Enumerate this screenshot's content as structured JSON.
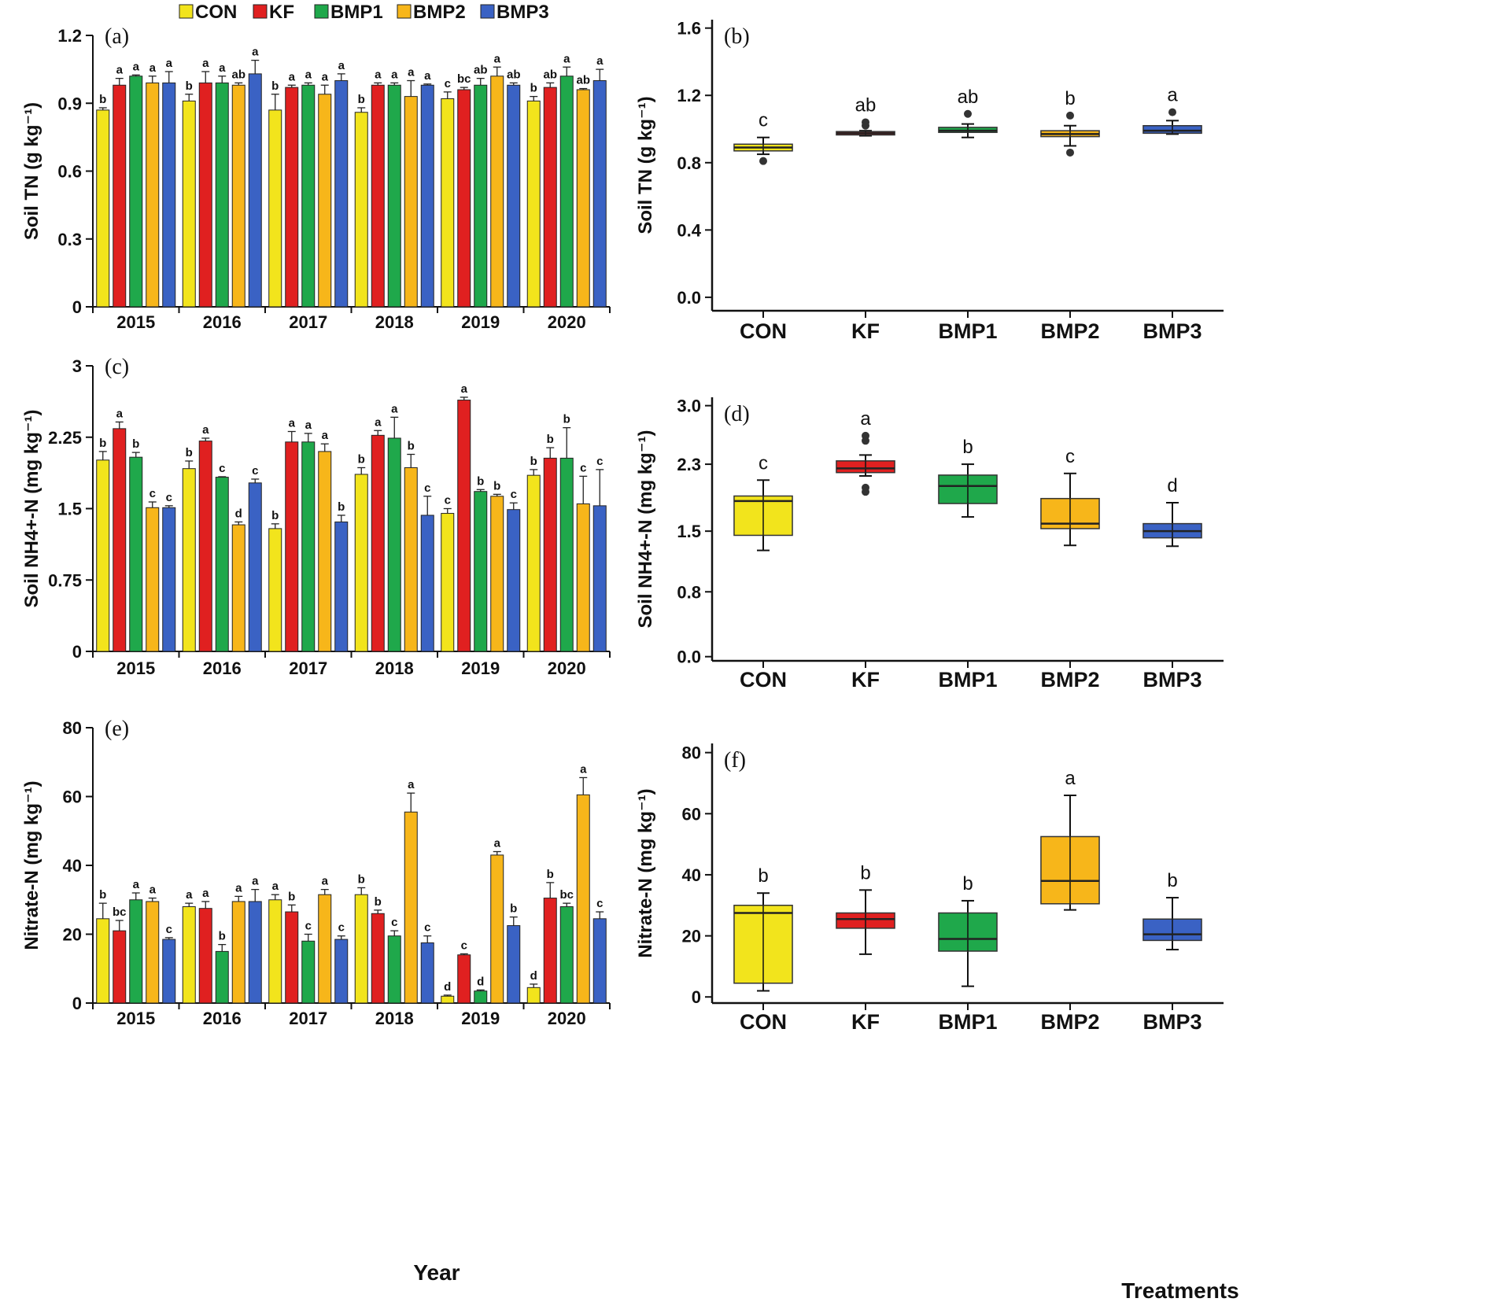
{
  "legend": [
    {
      "name": "CON",
      "color": "#f2e41c"
    },
    {
      "name": "KF",
      "color": "#e02020"
    },
    {
      "name": "BMP1",
      "color": "#1fa84b"
    },
    {
      "name": "BMP2",
      "color": "#f7b61a"
    },
    {
      "name": "BMP3",
      "color": "#3a62c4"
    }
  ],
  "labels": {
    "year": "Year",
    "treatments": "Treatments"
  },
  "chart_data": [
    {
      "id": "a",
      "panel_label": "(a)",
      "type": "bar",
      "ylabel": "Soil TN (g kg⁻¹)",
      "ylim": [
        0,
        1.2
      ],
      "yticks": [
        "0",
        "0.3",
        "0.6",
        "0.9",
        "1.2"
      ],
      "ytick_values": [
        0,
        0.3,
        0.6,
        0.9,
        1.2
      ],
      "categories": [
        "2015",
        "2016",
        "2017",
        "2018",
        "2019",
        "2020"
      ],
      "series": [
        {
          "name": "CON",
          "values": [
            0.87,
            0.91,
            0.87,
            0.86,
            0.92,
            0.91
          ],
          "errors": [
            0.01,
            0.03,
            0.07,
            0.02,
            0.03,
            0.02
          ],
          "letters": [
            "b",
            "b",
            "b",
            "b",
            "c",
            "b"
          ]
        },
        {
          "name": "KF",
          "values": [
            0.98,
            0.99,
            0.97,
            0.98,
            0.96,
            0.97
          ],
          "errors": [
            0.03,
            0.05,
            0.01,
            0.01,
            0.01,
            0.02
          ],
          "letters": [
            "a",
            "a",
            "a",
            "a",
            "bc",
            "ab"
          ]
        },
        {
          "name": "BMP1",
          "values": [
            1.02,
            0.99,
            0.98,
            0.98,
            0.98,
            1.02
          ],
          "errors": [
            0.005,
            0.03,
            0.01,
            0.01,
            0.03,
            0.04
          ],
          "letters": [
            "a",
            "a",
            "a",
            "a",
            "ab",
            "a"
          ]
        },
        {
          "name": "BMP2",
          "values": [
            0.99,
            0.98,
            0.94,
            0.93,
            1.02,
            0.96
          ],
          "errors": [
            0.03,
            0.01,
            0.04,
            0.07,
            0.04,
            0.005
          ],
          "letters": [
            "a",
            "ab",
            "a",
            "a",
            "a",
            "ab"
          ]
        },
        {
          "name": "BMP3",
          "values": [
            0.99,
            1.03,
            1.0,
            0.98,
            0.98,
            1.0
          ],
          "errors": [
            0.05,
            0.06,
            0.03,
            0.005,
            0.01,
            0.05
          ],
          "letters": [
            "a",
            "a",
            "a",
            "a",
            "ab",
            "a"
          ]
        }
      ]
    },
    {
      "id": "b",
      "panel_label": "(b)",
      "type": "box",
      "ylabel": "Soil TN (g kg⁻¹)",
      "ylim": [
        -0.08,
        1.65
      ],
      "yticks": [
        "0.0",
        "0.4",
        "0.8",
        "1.2",
        "1.6"
      ],
      "ytick_values": [
        0,
        0.4,
        0.8,
        1.2,
        1.6
      ],
      "categories": [
        "CON",
        "KF",
        "BMP1",
        "BMP2",
        "BMP3"
      ],
      "boxes": [
        {
          "min": 0.85,
          "q1": 0.87,
          "median": 0.89,
          "q3": 0.91,
          "max": 0.95,
          "outliers": [
            0.81
          ],
          "letter": "c"
        },
        {
          "min": 0.96,
          "q1": 0.965,
          "median": 0.975,
          "q3": 0.985,
          "max": 0.99,
          "outliers": [
            1.02,
            1.04
          ],
          "letter": "ab"
        },
        {
          "min": 0.95,
          "q1": 0.98,
          "median": 0.99,
          "q3": 1.01,
          "max": 1.03,
          "outliers": [
            1.09
          ],
          "letter": "ab"
        },
        {
          "min": 0.9,
          "q1": 0.955,
          "median": 0.97,
          "q3": 0.99,
          "max": 1.02,
          "outliers": [
            1.08,
            0.86
          ],
          "letter": "b"
        },
        {
          "min": 0.97,
          "q1": 0.975,
          "median": 0.99,
          "q3": 1.02,
          "max": 1.05,
          "outliers": [
            1.1
          ],
          "letter": "a"
        }
      ]
    },
    {
      "id": "c",
      "panel_label": "(c)",
      "type": "bar",
      "ylabel": "Soil NH4+-N (mg kg⁻¹)",
      "ylim": [
        0,
        3
      ],
      "yticks": [
        "0",
        "0.75",
        "1.5",
        "2.25",
        "3"
      ],
      "ytick_values": [
        0,
        0.75,
        1.5,
        2.25,
        3
      ],
      "categories": [
        "2015",
        "2016",
        "2017",
        "2018",
        "2019",
        "2020"
      ],
      "series": [
        {
          "name": "CON",
          "values": [
            2.01,
            1.92,
            1.29,
            1.86,
            1.45,
            1.85
          ],
          "errors": [
            0.09,
            0.08,
            0.05,
            0.07,
            0.05,
            0.06
          ],
          "letters": [
            "b",
            "b",
            "b",
            "b",
            "c",
            "b"
          ]
        },
        {
          "name": "KF",
          "values": [
            2.34,
            2.21,
            2.2,
            2.27,
            2.64,
            2.03
          ],
          "errors": [
            0.07,
            0.03,
            0.11,
            0.05,
            0.03,
            0.11
          ],
          "letters": [
            "a",
            "a",
            "a",
            "a",
            "a",
            "b"
          ]
        },
        {
          "name": "BMP1",
          "values": [
            2.04,
            1.83,
            2.2,
            2.24,
            1.68,
            2.03
          ],
          "errors": [
            0.05,
            0.005,
            0.09,
            0.22,
            0.02,
            0.32
          ],
          "letters": [
            "b",
            "c",
            "a",
            "a",
            "b",
            "b"
          ]
        },
        {
          "name": "BMP2",
          "values": [
            1.51,
            1.33,
            2.1,
            1.93,
            1.63,
            1.55
          ],
          "errors": [
            0.06,
            0.03,
            0.08,
            0.14,
            0.02,
            0.29
          ],
          "letters": [
            "c",
            "d",
            "a",
            "b",
            "b",
            "c"
          ]
        },
        {
          "name": "BMP3",
          "values": [
            1.51,
            1.77,
            1.36,
            1.43,
            1.49,
            1.53
          ],
          "errors": [
            0.02,
            0.04,
            0.07,
            0.2,
            0.07,
            0.38
          ],
          "letters": [
            "c",
            "c",
            "b",
            "c",
            "c",
            "c"
          ]
        }
      ]
    },
    {
      "id": "d",
      "panel_label": "(d)",
      "type": "box",
      "ylabel": "Soil NH4+-N (mg kg⁻¹)",
      "ylim": [
        -0.05,
        3.1
      ],
      "yticks": [
        "0.0",
        "0.8",
        "1.5",
        "2.3",
        "3.0"
      ],
      "ytick_values": [
        0,
        0.775,
        1.5,
        2.3,
        3.0
      ],
      "categories": [
        "CON",
        "KF",
        "BMP1",
        "BMP2",
        "BMP3"
      ],
      "boxes": [
        {
          "min": 1.27,
          "q1": 1.45,
          "median": 1.86,
          "q3": 1.92,
          "max": 2.11,
          "outliers": [],
          "letter": "c"
        },
        {
          "min": 2.16,
          "q1": 2.2,
          "median": 2.25,
          "q3": 2.34,
          "max": 2.41,
          "outliers": [
            2.64,
            2.58,
            1.97,
            2.02
          ],
          "letter": "a"
        },
        {
          "min": 1.67,
          "q1": 1.83,
          "median": 2.04,
          "q3": 2.17,
          "max": 2.3,
          "outliers": [],
          "letter": "b"
        },
        {
          "min": 1.33,
          "q1": 1.53,
          "median": 1.59,
          "q3": 1.89,
          "max": 2.19,
          "outliers": [],
          "letter": "c"
        },
        {
          "min": 1.32,
          "q1": 1.42,
          "median": 1.5,
          "q3": 1.59,
          "max": 1.84,
          "outliers": [],
          "letter": "d"
        }
      ]
    },
    {
      "id": "e",
      "panel_label": "(e)",
      "type": "bar",
      "ylabel": "Nitrate-N  (mg kg⁻¹)",
      "ylim": [
        0,
        80
      ],
      "yticks": [
        "0",
        "20",
        "40",
        "60",
        "80"
      ],
      "ytick_values": [
        0,
        20,
        40,
        60,
        80
      ],
      "categories": [
        "2015",
        "2016",
        "2017",
        "2018",
        "2019",
        "2020"
      ],
      "series": [
        {
          "name": "CON",
          "values": [
            24.5,
            28.0,
            30.0,
            31.5,
            2.0,
            4.5
          ],
          "errors": [
            4.5,
            1.0,
            1.5,
            2.0,
            0.3,
            1.0
          ],
          "letters": [
            "b",
            "a",
            "a",
            "b",
            "d",
            "d"
          ]
        },
        {
          "name": "KF",
          "values": [
            21.0,
            27.5,
            26.5,
            26.0,
            14.0,
            30.5
          ],
          "errors": [
            3.0,
            2.0,
            2.0,
            1.0,
            0.3,
            4.5
          ],
          "letters": [
            "bc",
            "a",
            "b",
            "b",
            "c",
            "b"
          ]
        },
        {
          "name": "BMP1",
          "values": [
            30.0,
            15.0,
            18.0,
            19.5,
            3.5,
            28.0
          ],
          "errors": [
            2.0,
            2.0,
            2.0,
            1.5,
            0.3,
            1.0
          ],
          "letters": [
            "a",
            "b",
            "c",
            "c",
            "d",
            "bc"
          ]
        },
        {
          "name": "BMP2",
          "values": [
            29.5,
            29.5,
            31.5,
            55.5,
            43.0,
            60.5
          ],
          "errors": [
            1.0,
            1.5,
            1.5,
            5.5,
            1.0,
            5.0
          ],
          "letters": [
            "a",
            "a",
            "a",
            "a",
            "a",
            "a"
          ]
        },
        {
          "name": "BMP3",
          "values": [
            18.5,
            29.5,
            18.5,
            17.5,
            22.5,
            24.5
          ],
          "errors": [
            0.5,
            3.5,
            1.0,
            2.0,
            2.5,
            2.0
          ],
          "letters": [
            "c",
            "a",
            "c",
            "c",
            "b",
            "c"
          ]
        }
      ]
    },
    {
      "id": "f",
      "panel_label": "(f)",
      "type": "box",
      "ylabel": "Nitrate-N  (mg kg⁻¹)",
      "ylim": [
        -2,
        83
      ],
      "yticks": [
        "0",
        "20",
        "40",
        "60",
        "80"
      ],
      "ytick_values": [
        0,
        20,
        40,
        60,
        80
      ],
      "categories": [
        "CON",
        "KF",
        "BMP1",
        "BMP2",
        "BMP3"
      ],
      "boxes": [
        {
          "min": 2.0,
          "q1": 4.5,
          "median": 27.5,
          "q3": 30.0,
          "max": 34.0,
          "outliers": [],
          "letter": "b"
        },
        {
          "min": 14.0,
          "q1": 22.5,
          "median": 25.5,
          "q3": 27.5,
          "max": 35.0,
          "outliers": [],
          "letter": "b"
        },
        {
          "min": 3.5,
          "q1": 15.0,
          "median": 19.0,
          "q3": 27.5,
          "max": 31.5,
          "outliers": [],
          "letter": "b"
        },
        {
          "min": 28.5,
          "q1": 30.5,
          "median": 38.0,
          "q3": 52.5,
          "max": 66.0,
          "outliers": [],
          "letter": "a"
        },
        {
          "min": 15.5,
          "q1": 18.5,
          "median": 20.5,
          "q3": 25.5,
          "max": 32.5,
          "outliers": [],
          "letter": "b"
        }
      ]
    }
  ]
}
